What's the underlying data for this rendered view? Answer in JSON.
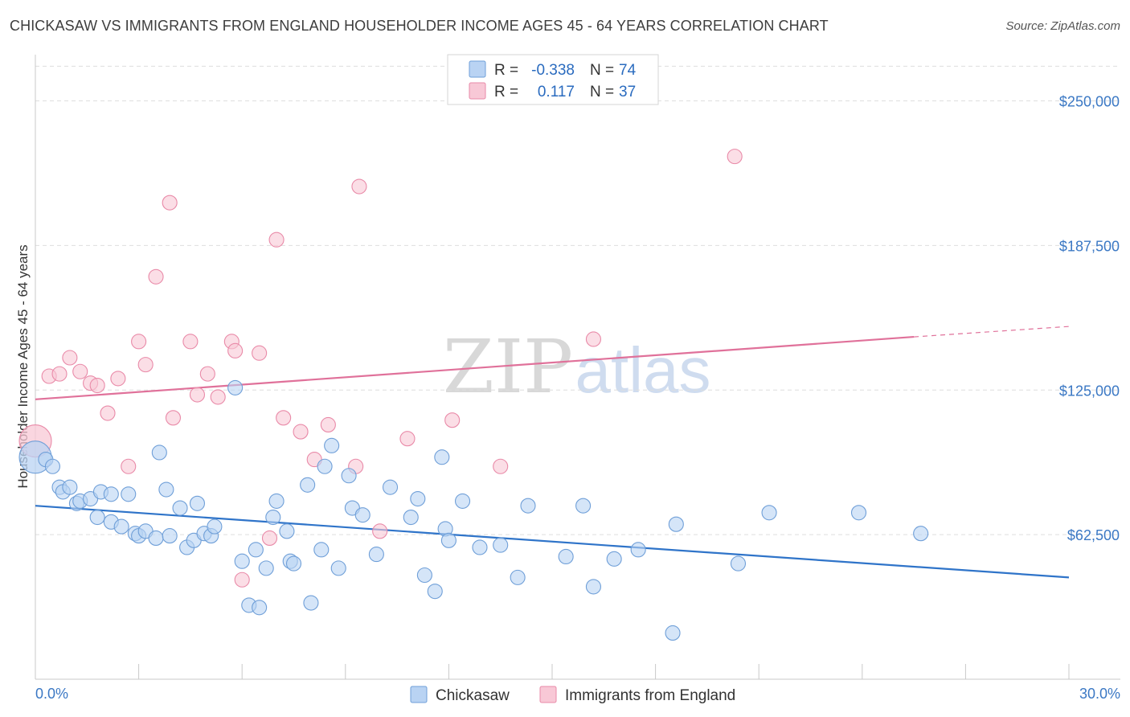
{
  "header": {
    "title": "CHICKASAW VS IMMIGRANTS FROM ENGLAND HOUSEHOLDER INCOME AGES 45 - 64 YEARS CORRELATION CHART",
    "source": "Source: ZipAtlas.com"
  },
  "watermark": {
    "zip": "ZIP",
    "atlas": "atlas"
  },
  "legend_top": {
    "rows": [
      {
        "r_label": "R =",
        "r_value": "-0.338",
        "n_label": "N =",
        "n_value": "74"
      },
      {
        "r_label": "R =",
        "r_value": "0.117",
        "n_label": "N =",
        "n_value": "37"
      }
    ]
  },
  "colors": {
    "blue_fill": "#b9d3f3",
    "blue_stroke": "#6f9fd8",
    "blue_line": "#2f74c9",
    "pink_fill": "#f8c8d6",
    "pink_stroke": "#e98aa8",
    "pink_line": "#e0719a",
    "grid": "#dddddd",
    "axis_text": "#3b78c4"
  },
  "chart_data": {
    "type": "scatter",
    "title": "CHICKASAW VS IMMIGRANTS FROM ENGLAND HOUSEHOLDER INCOME AGES 45 - 64 YEARS CORRELATION CHART",
    "xlabel": "",
    "ylabel": "Householder Income Ages 45 - 64 years",
    "xlim": [
      0,
      30
    ],
    "ylim": [
      0,
      270000
    ],
    "x_tick_labels": [
      "0.0%",
      "30.0%"
    ],
    "y_ticks": [
      62500,
      125000,
      187500,
      250000
    ],
    "y_tick_labels": [
      "$62,500",
      "$125,000",
      "$187,500",
      "$250,000"
    ],
    "grid": true,
    "legend_position": "top-center",
    "series": [
      {
        "name": "Chickasaw",
        "color": "#b9d3f3",
        "trend": {
          "x": [
            0,
            30
          ],
          "y": [
            75000,
            44000
          ]
        },
        "points": [
          [
            0.0,
            96000
          ],
          [
            0.3,
            95000
          ],
          [
            0.5,
            92000
          ],
          [
            0.7,
            83000
          ],
          [
            0.8,
            81000
          ],
          [
            1.0,
            83000
          ],
          [
            1.2,
            76000
          ],
          [
            1.3,
            77000
          ],
          [
            1.6,
            78000
          ],
          [
            1.9,
            81000
          ],
          [
            2.2,
            80000
          ],
          [
            1.8,
            70000
          ],
          [
            2.2,
            68000
          ],
          [
            2.5,
            66000
          ],
          [
            2.7,
            80000
          ],
          [
            2.9,
            63000
          ],
          [
            3.0,
            62000
          ],
          [
            3.2,
            64000
          ],
          [
            3.5,
            61000
          ],
          [
            3.6,
            98000
          ],
          [
            3.8,
            82000
          ],
          [
            3.9,
            62000
          ],
          [
            4.2,
            74000
          ],
          [
            4.4,
            57000
          ],
          [
            4.6,
            60000
          ],
          [
            4.7,
            76000
          ],
          [
            4.9,
            63000
          ],
          [
            5.1,
            62000
          ],
          [
            5.2,
            66000
          ],
          [
            5.8,
            126000
          ],
          [
            6.0,
            51000
          ],
          [
            6.2,
            32000
          ],
          [
            6.4,
            56000
          ],
          [
            6.5,
            31000
          ],
          [
            6.7,
            48000
          ],
          [
            6.9,
            70000
          ],
          [
            7.0,
            77000
          ],
          [
            7.3,
            64000
          ],
          [
            7.4,
            51000
          ],
          [
            7.5,
            50000
          ],
          [
            7.9,
            84000
          ],
          [
            8.0,
            33000
          ],
          [
            8.3,
            56000
          ],
          [
            8.4,
            92000
          ],
          [
            8.6,
            101000
          ],
          [
            8.8,
            48000
          ],
          [
            9.1,
            88000
          ],
          [
            9.2,
            74000
          ],
          [
            9.5,
            71000
          ],
          [
            9.9,
            54000
          ],
          [
            10.3,
            83000
          ],
          [
            10.9,
            70000
          ],
          [
            11.1,
            78000
          ],
          [
            11.3,
            45000
          ],
          [
            11.6,
            38000
          ],
          [
            11.8,
            96000
          ],
          [
            11.9,
            65000
          ],
          [
            12.0,
            60000
          ],
          [
            12.4,
            77000
          ],
          [
            12.9,
            57000
          ],
          [
            13.5,
            58000
          ],
          [
            14.0,
            44000
          ],
          [
            14.3,
            75000
          ],
          [
            15.4,
            53000
          ],
          [
            15.9,
            75000
          ],
          [
            16.2,
            40000
          ],
          [
            16.8,
            52000
          ],
          [
            17.5,
            56000
          ],
          [
            18.5,
            20000
          ],
          [
            18.6,
            67000
          ],
          [
            20.4,
            50000
          ],
          [
            21.3,
            72000
          ],
          [
            23.9,
            72000
          ],
          [
            25.7,
            63000
          ]
        ]
      },
      {
        "name": "Immigrants from England",
        "color": "#f8c8d6",
        "trend": {
          "x": [
            0,
            25.5
          ],
          "y": [
            121000,
            148000
          ]
        },
        "trend_dashed": {
          "x": [
            25.5,
            30
          ],
          "y": [
            148000,
            152500
          ]
        },
        "points": [
          [
            0.0,
            103000
          ],
          [
            0.4,
            131000
          ],
          [
            0.7,
            132000
          ],
          [
            1.0,
            139000
          ],
          [
            1.3,
            133000
          ],
          [
            1.6,
            128000
          ],
          [
            1.8,
            127000
          ],
          [
            2.1,
            115000
          ],
          [
            2.4,
            130000
          ],
          [
            2.7,
            92000
          ],
          [
            3.0,
            146000
          ],
          [
            3.2,
            136000
          ],
          [
            3.5,
            174000
          ],
          [
            3.9,
            206000
          ],
          [
            4.0,
            113000
          ],
          [
            4.5,
            146000
          ],
          [
            4.7,
            123000
          ],
          [
            5.0,
            132000
          ],
          [
            5.3,
            122000
          ],
          [
            5.7,
            146000
          ],
          [
            5.8,
            142000
          ],
          [
            6.0,
            43000
          ],
          [
            6.5,
            141000
          ],
          [
            6.8,
            61000
          ],
          [
            7.0,
            190000
          ],
          [
            7.2,
            113000
          ],
          [
            7.7,
            107000
          ],
          [
            8.1,
            95000
          ],
          [
            8.5,
            110000
          ],
          [
            9.3,
            92000
          ],
          [
            9.4,
            213000
          ],
          [
            10.0,
            64000
          ],
          [
            10.8,
            104000
          ],
          [
            12.1,
            112000
          ],
          [
            13.5,
            92000
          ],
          [
            16.2,
            147000
          ],
          [
            20.3,
            226000
          ]
        ]
      }
    ]
  },
  "bottom_legend": {
    "items": [
      {
        "label": "Chickasaw"
      },
      {
        "label": "Immigrants from England"
      }
    ]
  }
}
